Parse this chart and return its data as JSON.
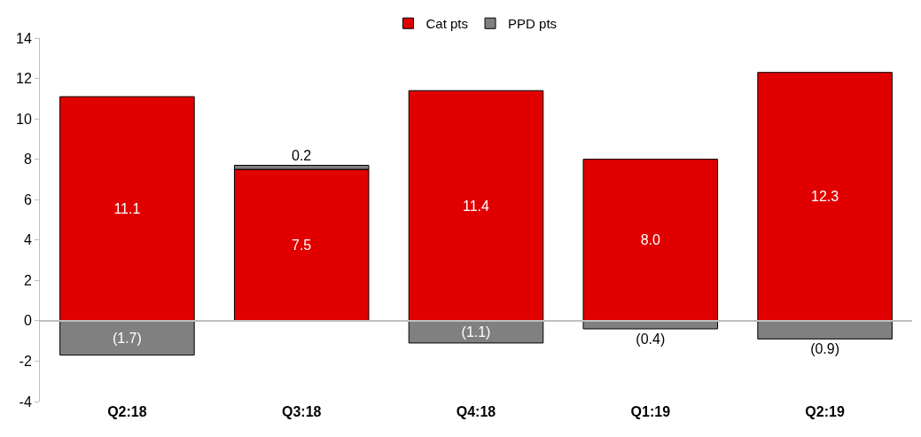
{
  "chart_data": {
    "type": "bar",
    "stacked": true,
    "categories": [
      "Q2:18",
      "Q3:18",
      "Q4:18",
      "Q1:19",
      "Q2:19"
    ],
    "series": [
      {
        "name": "Cat pts",
        "color": "#e00000",
        "values": [
          11.1,
          7.5,
          11.4,
          8.0,
          12.3
        ],
        "value_labels": [
          "11.1",
          "7.5",
          "11.4",
          "8.0",
          "12.3"
        ]
      },
      {
        "name": "PPD pts",
        "color": "#808080",
        "values": [
          -1.7,
          0.2,
          -1.1,
          -0.4,
          -0.9
        ],
        "value_labels": [
          "(1.7)",
          "0.2",
          "(1.1)",
          "(0.4)",
          "(0.9)"
        ]
      }
    ],
    "ylim": [
      -4,
      14
    ],
    "yticks": [
      -4,
      -2,
      0,
      2,
      4,
      6,
      8,
      10,
      12,
      14
    ],
    "legend": "top"
  }
}
